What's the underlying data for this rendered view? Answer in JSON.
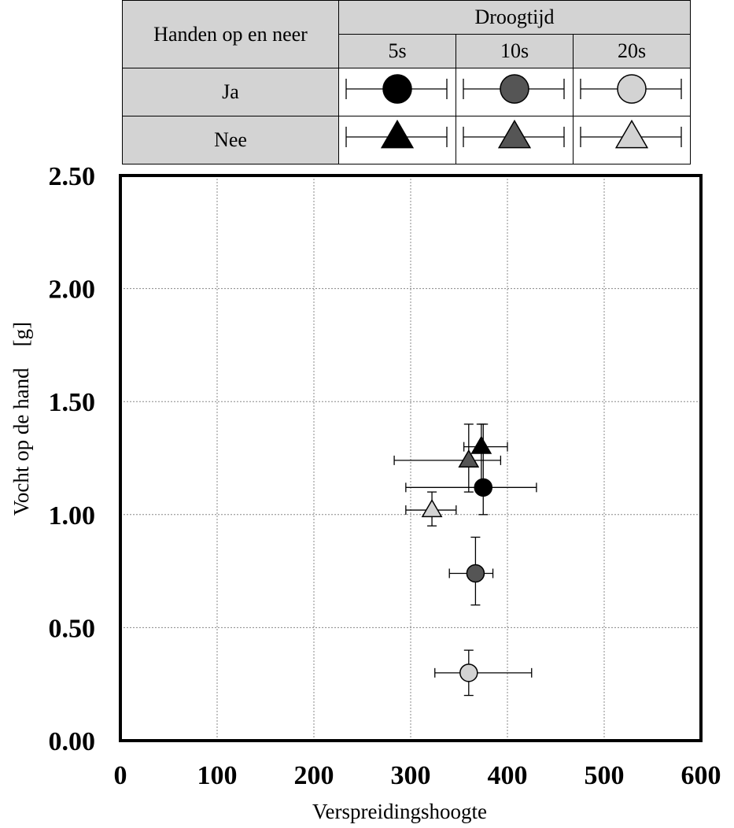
{
  "legend": {
    "row_header": "Handen op en neer",
    "col_group": "Droogtijd",
    "columns": [
      "5s",
      "10s",
      "20s"
    ],
    "rows": [
      "Ja",
      "Nee"
    ],
    "row_markers": [
      "circle",
      "triangle"
    ],
    "column_colors": [
      "#000000",
      "#555555",
      "#d3d3d3"
    ]
  },
  "chart_data": {
    "type": "scatter",
    "xlabel": "Verspreidingshoogte",
    "ylabel": "Vocht op de hand　[g]",
    "xlim": [
      0,
      600
    ],
    "ylim": [
      0,
      2.5
    ],
    "x_ticks": [
      "0",
      "100",
      "200",
      "300",
      "400",
      "500",
      "600"
    ],
    "y_ticks": [
      "0.00",
      "0.50",
      "1.00",
      "1.50",
      "2.00",
      "2.50"
    ],
    "grid": true,
    "series": [
      {
        "name": "Ja 5s",
        "marker": "circle",
        "color": "#000000",
        "x": 375,
        "y": 1.12,
        "xerr": [
          295,
          430
        ],
        "yerr": [
          1.0,
          1.4
        ]
      },
      {
        "name": "Ja 10s",
        "marker": "circle",
        "color": "#555555",
        "x": 367,
        "y": 0.74,
        "xerr": [
          340,
          385
        ],
        "yerr": [
          0.6,
          0.9
        ]
      },
      {
        "name": "Ja 20s",
        "marker": "circle",
        "color": "#d3d3d3",
        "x": 360,
        "y": 0.3,
        "xerr": [
          325,
          425
        ],
        "yerr": [
          0.2,
          0.4
        ]
      },
      {
        "name": "Nee 5s",
        "marker": "triangle",
        "color": "#000000",
        "x": 373,
        "y": 1.3,
        "xerr": [
          355,
          400
        ],
        "yerr": [
          1.1,
          1.4
        ]
      },
      {
        "name": "Nee 10s",
        "marker": "triangle",
        "color": "#555555",
        "x": 360,
        "y": 1.24,
        "xerr": [
          283,
          393
        ],
        "yerr": [
          1.1,
          1.4
        ]
      },
      {
        "name": "Nee 20s",
        "marker": "triangle",
        "color": "#d3d3d3",
        "x": 322,
        "y": 1.02,
        "xerr": [
          295,
          347
        ],
        "yerr": [
          0.95,
          1.1
        ]
      }
    ]
  }
}
